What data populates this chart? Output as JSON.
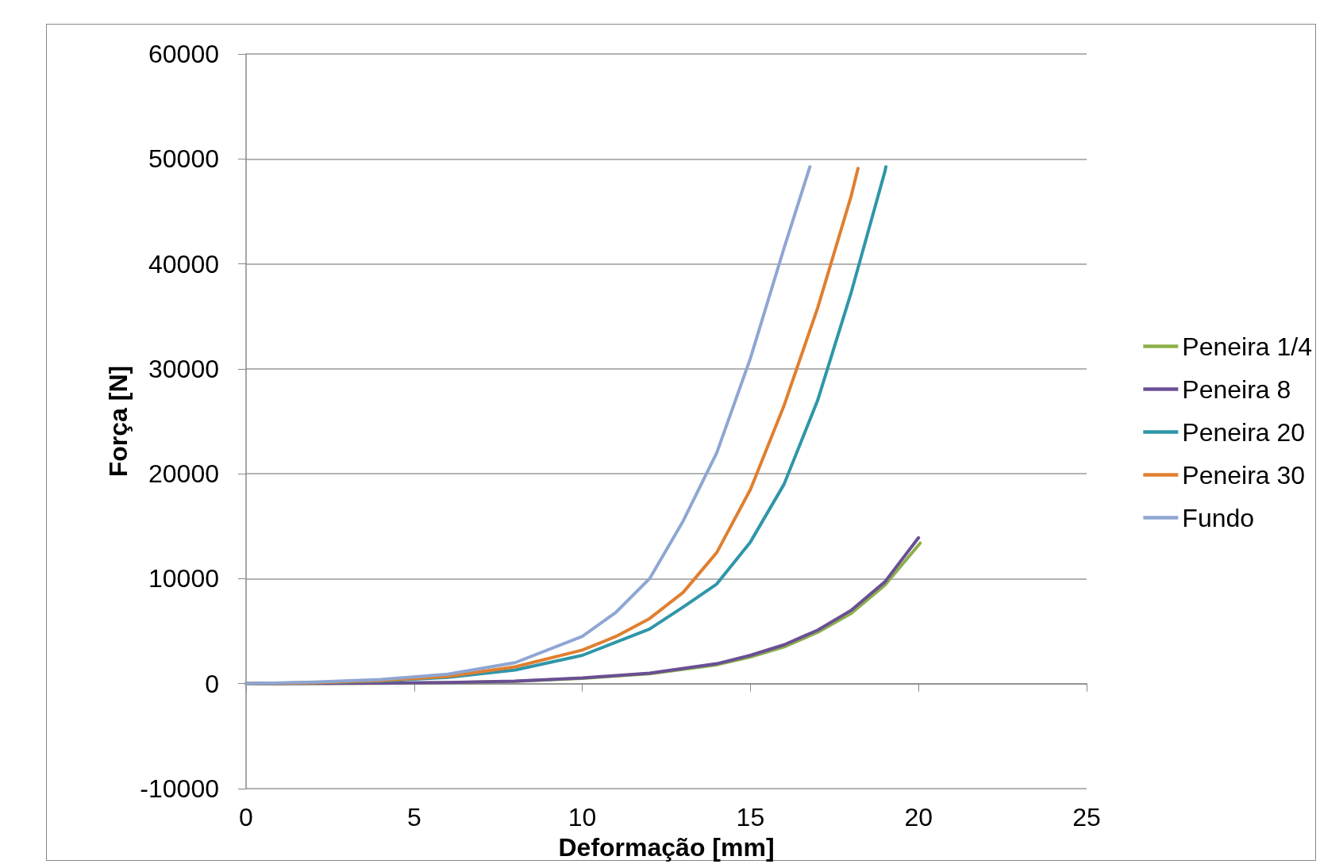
{
  "chart_data": {
    "type": "line",
    "xlabel": "Deformação [mm]",
    "ylabel": "Força [N]",
    "xlim": [
      0,
      25
    ],
    "xticks": [
      0,
      5,
      10,
      15,
      20,
      25
    ],
    "ylim": [
      -10000,
      60000
    ],
    "yticks": [
      -10000,
      0,
      10000,
      20000,
      30000,
      40000,
      50000,
      60000
    ],
    "grid": "y",
    "legend": "right",
    "marker": "none",
    "line_style": "solid",
    "series": [
      {
        "name": "Peneira 1/4",
        "color": "#8cb04a",
        "x": [
          0,
          4,
          6,
          8,
          10,
          12,
          14,
          15,
          16,
          17,
          18,
          19,
          20.05
        ],
        "values": [
          0,
          40,
          100,
          220,
          500,
          950,
          1800,
          2550,
          3500,
          4900,
          6700,
          9400,
          13400
        ]
      },
      {
        "name": "Peneira 8",
        "color": "#6a4f94",
        "x": [
          0,
          4,
          6,
          8,
          10,
          12,
          14,
          15,
          16,
          17,
          18,
          19,
          20
        ],
        "values": [
          0,
          50,
          120,
          250,
          550,
          1000,
          1900,
          2700,
          3700,
          5100,
          7000,
          9700,
          13900
        ]
      },
      {
        "name": "Peneira 20",
        "color": "#2f96a8",
        "x": [
          0,
          2,
          4,
          6,
          8,
          10,
          12,
          13,
          14,
          15,
          16,
          17,
          18,
          19,
          19.03
        ],
        "values": [
          0,
          90,
          250,
          600,
          1300,
          2700,
          5200,
          7300,
          9500,
          13500,
          19000,
          27000,
          37300,
          48800,
          49250
        ]
      },
      {
        "name": "Peneira 30",
        "color": "#e07f30",
        "x": [
          0,
          2,
          4,
          6,
          8,
          10,
          11,
          12,
          13,
          14,
          15,
          16,
          17,
          18,
          18.2
        ],
        "values": [
          0,
          100,
          300,
          700,
          1600,
          3200,
          4500,
          6200,
          8700,
          12500,
          18500,
          26500,
          35800,
          46500,
          49100
        ]
      },
      {
        "name": "Fundo",
        "color": "#8ea6d2",
        "x": [
          0,
          2,
          4,
          6,
          8,
          10,
          11,
          12,
          13,
          14,
          15,
          16,
          16.77
        ],
        "values": [
          0,
          150,
          400,
          900,
          2000,
          4500,
          6800,
          10000,
          15500,
          22000,
          31000,
          41500,
          49250
        ]
      }
    ]
  }
}
